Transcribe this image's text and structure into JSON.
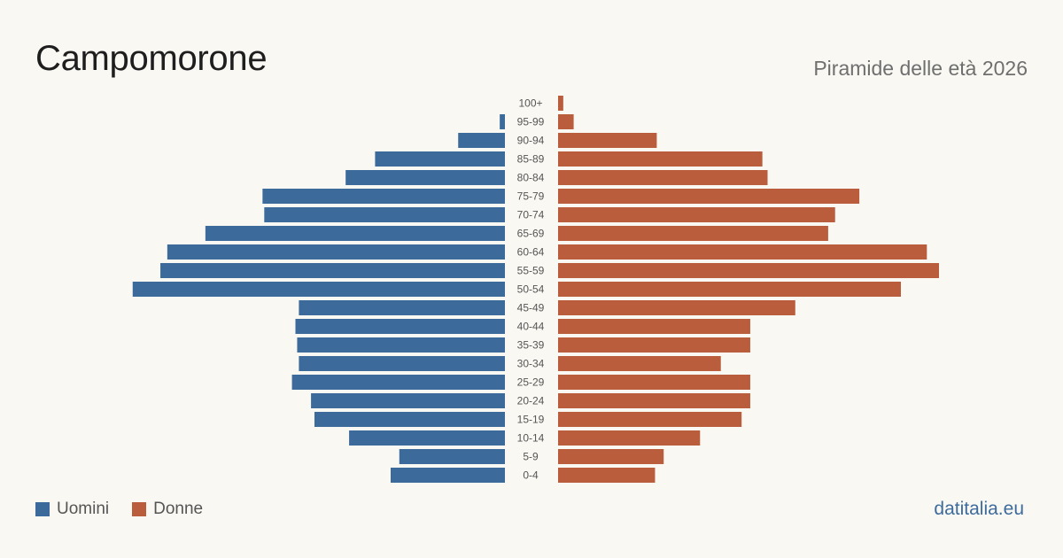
{
  "header": {
    "title": "Campomorone",
    "subtitle": "Piramide delle età 2026"
  },
  "legend": {
    "men_label": "Uomini",
    "women_label": "Donne"
  },
  "footer": {
    "brand": "datitalia.eu"
  },
  "colors": {
    "men": "#3c6a9b",
    "women": "#b95d3d"
  },
  "chart_data": {
    "type": "bar",
    "orientation": "horizontal-pyramid",
    "categories": [
      "100+",
      "95-99",
      "90-94",
      "85-89",
      "80-84",
      "75-79",
      "70-74",
      "65-69",
      "60-64",
      "55-59",
      "50-54",
      "45-49",
      "40-44",
      "35-39",
      "30-34",
      "25-29",
      "20-24",
      "15-19",
      "10-14",
      "5-9",
      "0-4"
    ],
    "series": [
      {
        "name": "Uomini",
        "values": [
          0,
          3,
          27,
          75,
          92,
          140,
          139,
          173,
          195,
          199,
          215,
          119,
          121,
          120,
          119,
          123,
          112,
          110,
          90,
          61,
          66
        ]
      },
      {
        "name": "Donne",
        "values": [
          3,
          9,
          57,
          118,
          121,
          174,
          160,
          156,
          213,
          220,
          198,
          137,
          111,
          111,
          94,
          111,
          111,
          106,
          82,
          61,
          56
        ]
      }
    ],
    "xlim": [
      0,
      220
    ],
    "grid": false,
    "legend_position": "bottom-left"
  }
}
